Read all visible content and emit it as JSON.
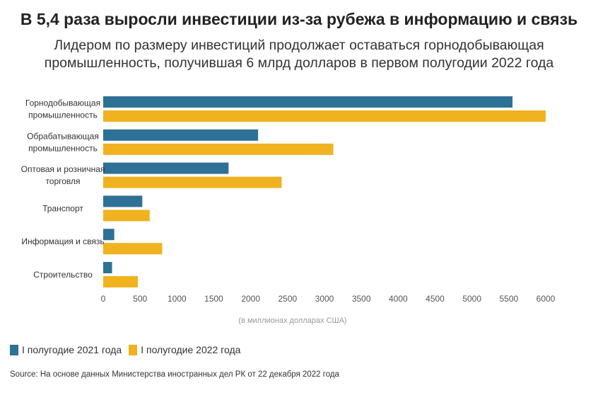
{
  "title": "В 5,4 раза выросли инвестиции из-за рубежа в информацию и связь",
  "subtitle_lines": [
    "Лидером по размеру инвестиций продолжает оставаться горнодобывающая",
    "промышленность, получившая 6 млрд долларов в первом полугодии 2022 года"
  ],
  "source": "Source: На основе данных Министерства иностранных дел РК от 22 декабря 2022 года",
  "colors": {
    "series_2021": "#2e7196",
    "series_2022": "#f0b21e",
    "axis_text": "#555555",
    "unit_text": "#999999"
  },
  "chart_data": {
    "type": "bar",
    "orientation": "horizontal",
    "categories": [
      [
        "Горнодобывающая",
        "промышленность"
      ],
      [
        "Обрабатывающая",
        "промышленность"
      ],
      [
        "Оптовая и розничная",
        "торговля"
      ],
      [
        "Транспорт"
      ],
      [
        "Информация и связь"
      ],
      [
        "Строительство"
      ]
    ],
    "series": [
      {
        "name": "I полугодие 2021 года",
        "values": [
          5550,
          2100,
          1700,
          530,
          150,
          120
        ]
      },
      {
        "name": "I полугодие 2022 года",
        "values": [
          6000,
          3120,
          2420,
          630,
          800,
          470
        ]
      }
    ],
    "xlabel": "(в миллионах долларах США)",
    "xlim": [
      0,
      6000
    ],
    "xticks": [
      0,
      500,
      1000,
      1500,
      2000,
      2500,
      3000,
      3500,
      4000,
      4500,
      5000,
      5500,
      6000
    ],
    "grid": false,
    "legend_position": "bottom-left"
  }
}
